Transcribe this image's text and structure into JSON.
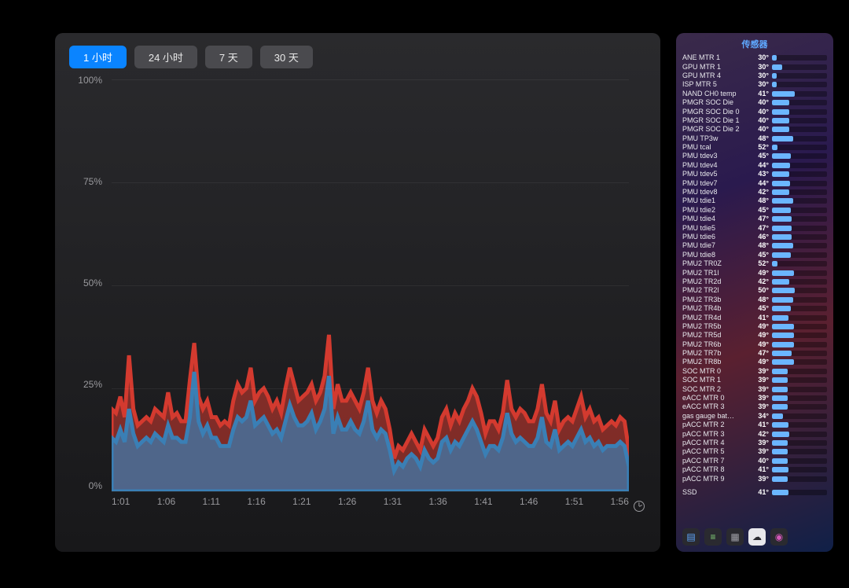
{
  "chart": {
    "tabs": [
      {
        "label": "1 小时",
        "active": true
      },
      {
        "label": "24 小时",
        "active": false
      },
      {
        "label": "7 天",
        "active": false
      },
      {
        "label": "30 天",
        "active": false
      }
    ],
    "type": "area",
    "ylim": [
      0,
      100
    ],
    "ytick_step": 25,
    "ylabels": [
      "100%",
      "75%",
      "50%",
      "25%",
      "0%"
    ],
    "xlabels": [
      "1:01",
      "1:06",
      "1:11",
      "1:16",
      "1:21",
      "1:26",
      "1:31",
      "1:36",
      "1:41",
      "1:46",
      "1:51",
      "1:56"
    ],
    "grid_color": "#3a3a3e",
    "label_color": "#9a9a9e",
    "background_gradient": [
      "#2a2a2d",
      "#18181a"
    ],
    "series": [
      {
        "name": "red",
        "stroke": "#d33a2f",
        "fill": "rgba(211,58,47,0.55)",
        "values": [
          20,
          19,
          23,
          18,
          33,
          20,
          16,
          17,
          18,
          17,
          20,
          19,
          18,
          24,
          18,
          19,
          17,
          17,
          27,
          36,
          23,
          20,
          22,
          18,
          18,
          16,
          17,
          16,
          22,
          26,
          24,
          25,
          30,
          22,
          24,
          25,
          23,
          20,
          22,
          19,
          25,
          30,
          26,
          22,
          23,
          24,
          26,
          22,
          24,
          28,
          38,
          20,
          26,
          22,
          22,
          24,
          22,
          20,
          24,
          30,
          22,
          19,
          22,
          20,
          15,
          8,
          11,
          10,
          12,
          14,
          12,
          10,
          15,
          13,
          11,
          13,
          18,
          20,
          16,
          19,
          17,
          20,
          22,
          25,
          23,
          19,
          14,
          17,
          17,
          15,
          19,
          27,
          20,
          18,
          20,
          19,
          17,
          17,
          20,
          26,
          19,
          17,
          22,
          15,
          17,
          18,
          17,
          20,
          23,
          18,
          20,
          17,
          18,
          15,
          16,
          17,
          16,
          18,
          17,
          10
        ]
      },
      {
        "name": "blue",
        "stroke": "#3a7fb5",
        "fill": "rgba(58,127,181,0.70)",
        "values": [
          13,
          12,
          15,
          12,
          20,
          14,
          11,
          12,
          13,
          12,
          14,
          13,
          12,
          16,
          13,
          13,
          12,
          12,
          18,
          29,
          17,
          14,
          16,
          13,
          13,
          11,
          11,
          11,
          15,
          18,
          17,
          18,
          22,
          16,
          17,
          18,
          16,
          14,
          15,
          13,
          17,
          21,
          18,
          16,
          16,
          17,
          19,
          15,
          17,
          20,
          28,
          14,
          18,
          15,
          15,
          17,
          15,
          14,
          17,
          22,
          15,
          13,
          15,
          14,
          10,
          5,
          7,
          6,
          8,
          9,
          8,
          6,
          10,
          8,
          7,
          8,
          12,
          13,
          10,
          12,
          11,
          13,
          15,
          17,
          15,
          12,
          9,
          11,
          11,
          10,
          13,
          19,
          14,
          12,
          13,
          12,
          11,
          11,
          13,
          18,
          12,
          11,
          15,
          10,
          11,
          12,
          11,
          13,
          15,
          12,
          13,
          11,
          12,
          10,
          11,
          11,
          11,
          12,
          11,
          6
        ]
      }
    ]
  },
  "sensors": {
    "title": "传感器",
    "bar_max": 100,
    "bar_color": "#6bb6ff",
    "bar_track": "rgba(0,0,0,0.35)",
    "items": [
      {
        "name": "ANE MTR 1",
        "value": "30°",
        "pct": 8
      },
      {
        "name": "GPU MTR 1",
        "value": "30°",
        "pct": 18
      },
      {
        "name": "GPU MTR 4",
        "value": "30°",
        "pct": 8
      },
      {
        "name": "ISP MTR 5",
        "value": "30°",
        "pct": 8
      },
      {
        "name": "NAND CH0 temp",
        "value": "41°",
        "pct": 42
      },
      {
        "name": "PMGR SOC Die",
        "value": "40°",
        "pct": 32
      },
      {
        "name": "PMGR SOC Die 0",
        "value": "40°",
        "pct": 32
      },
      {
        "name": "PMGR SOC Die 1",
        "value": "40°",
        "pct": 32
      },
      {
        "name": "PMGR SOC Die 2",
        "value": "40°",
        "pct": 32
      },
      {
        "name": "PMU TP3w",
        "value": "48°",
        "pct": 38
      },
      {
        "name": "PMU tcal",
        "value": "52°",
        "pct": 10
      },
      {
        "name": "PMU tdev3",
        "value": "45°",
        "pct": 34
      },
      {
        "name": "PMU tdev4",
        "value": "44°",
        "pct": 33
      },
      {
        "name": "PMU tdev5",
        "value": "43°",
        "pct": 32
      },
      {
        "name": "PMU tdev7",
        "value": "44°",
        "pct": 33
      },
      {
        "name": "PMU tdev8",
        "value": "42°",
        "pct": 31
      },
      {
        "name": "PMU tdie1",
        "value": "48°",
        "pct": 38
      },
      {
        "name": "PMU tdie2",
        "value": "45°",
        "pct": 34
      },
      {
        "name": "PMU tdie4",
        "value": "47°",
        "pct": 36
      },
      {
        "name": "PMU tdie5",
        "value": "47°",
        "pct": 36
      },
      {
        "name": "PMU tdie6",
        "value": "46°",
        "pct": 35
      },
      {
        "name": "PMU tdie7",
        "value": "48°",
        "pct": 38
      },
      {
        "name": "PMU tdie8",
        "value": "45°",
        "pct": 34
      },
      {
        "name": "PMU2 TR0Z",
        "value": "52°",
        "pct": 10
      },
      {
        "name": "PMU2 TR1l",
        "value": "49°",
        "pct": 40
      },
      {
        "name": "PMU2 TR2d",
        "value": "42°",
        "pct": 31
      },
      {
        "name": "PMU2 TR2l",
        "value": "50°",
        "pct": 41
      },
      {
        "name": "PMU2 TR3b",
        "value": "48°",
        "pct": 38
      },
      {
        "name": "PMU2 TR4b",
        "value": "45°",
        "pct": 34
      },
      {
        "name": "PMU2 TR4d",
        "value": "41°",
        "pct": 30
      },
      {
        "name": "PMU2 TR5b",
        "value": "49°",
        "pct": 40
      },
      {
        "name": "PMU2 TR5d",
        "value": "49°",
        "pct": 40
      },
      {
        "name": "PMU2 TR6b",
        "value": "49°",
        "pct": 40
      },
      {
        "name": "PMU2 TR7b",
        "value": "47°",
        "pct": 36
      },
      {
        "name": "PMU2 TR8b",
        "value": "49°",
        "pct": 40
      },
      {
        "name": "SOC MTR 0",
        "value": "39°",
        "pct": 28
      },
      {
        "name": "SOC MTR 1",
        "value": "39°",
        "pct": 28
      },
      {
        "name": "SOC MTR 2",
        "value": "39°",
        "pct": 28
      },
      {
        "name": "eACC MTR 0",
        "value": "39°",
        "pct": 28
      },
      {
        "name": "eACC MTR 3",
        "value": "39°",
        "pct": 28
      },
      {
        "name": "gas gauge bat…",
        "value": "34°",
        "pct": 20
      },
      {
        "name": "pACC MTR 2",
        "value": "41°",
        "pct": 30
      },
      {
        "name": "pACC MTR 3",
        "value": "42°",
        "pct": 31
      },
      {
        "name": "pACC MTR 4",
        "value": "39°",
        "pct": 28
      },
      {
        "name": "pACC MTR 5",
        "value": "39°",
        "pct": 28
      },
      {
        "name": "pACC MTR 7",
        "value": "40°",
        "pct": 29
      },
      {
        "name": "pACC MTR 8",
        "value": "41°",
        "pct": 30
      },
      {
        "name": "pACC MTR 9",
        "value": "39°",
        "pct": 28
      }
    ],
    "footer": {
      "name": "SSD",
      "value": "41°",
      "pct": 30
    },
    "dock": [
      {
        "glyph": "▤",
        "name": "widget-cpu-icon",
        "bg": "#2a2a30",
        "fg": "#5fa8ff"
      },
      {
        "glyph": "≡",
        "name": "widget-mem-icon",
        "bg": "#2a2a30",
        "fg": "#86d67c"
      },
      {
        "glyph": "▦",
        "name": "widget-disk-icon",
        "bg": "#2a2a30",
        "fg": "#a0a0a8"
      },
      {
        "glyph": "☁",
        "name": "widget-cloud-icon",
        "bg": "#e8e8ec",
        "fg": "#2a2a30"
      },
      {
        "glyph": "◉",
        "name": "widget-sensor-icon",
        "bg": "#2a2a30",
        "fg": "#d458b8"
      }
    ]
  }
}
